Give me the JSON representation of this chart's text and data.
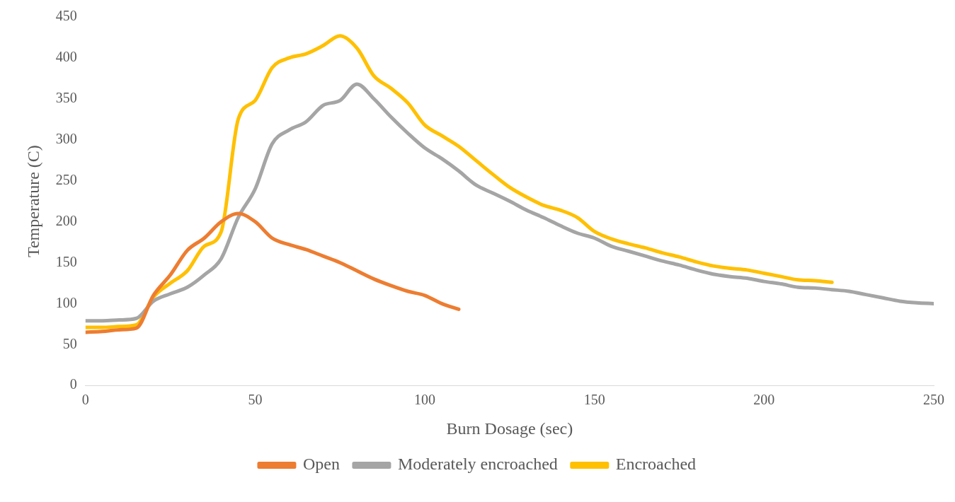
{
  "chart_data": {
    "type": "line",
    "xlabel": "Burn Dosage (sec)",
    "ylabel": "Temperature (C)",
    "xlim": [
      0,
      250
    ],
    "xticks": [
      0,
      50,
      100,
      150,
      200,
      250
    ],
    "ylim": [
      0,
      450
    ],
    "yticks": [
      0,
      50,
      100,
      150,
      200,
      250,
      300,
      350,
      400,
      450
    ],
    "grid": false,
    "legend": "bottom",
    "marker": "none",
    "line_style": "solid",
    "series": [
      {
        "name": "Open",
        "color": "#ed7d31",
        "x": [
          0,
          5,
          10,
          15,
          20,
          25,
          30,
          35,
          40,
          45,
          50,
          55,
          60,
          65,
          70,
          75,
          80,
          85,
          90,
          95,
          100,
          105,
          110
        ],
        "values": [
          65,
          66,
          68,
          70,
          110,
          135,
          165,
          180,
          200,
          210,
          200,
          180,
          172,
          166,
          158,
          150,
          140,
          130,
          122,
          115,
          110,
          100,
          93
        ]
      },
      {
        "name": "Moderately encroached",
        "color": "#a5a5a5",
        "x": [
          0,
          5,
          10,
          15,
          20,
          25,
          30,
          35,
          40,
          45,
          50,
          55,
          60,
          65,
          70,
          75,
          80,
          85,
          90,
          95,
          100,
          105,
          110,
          115,
          120,
          125,
          130,
          135,
          140,
          145,
          150,
          155,
          160,
          165,
          170,
          175,
          180,
          185,
          190,
          195,
          200,
          205,
          210,
          215,
          220,
          225,
          230,
          235,
          240,
          245,
          250
        ],
        "values": [
          79,
          79,
          80,
          82,
          103,
          112,
          120,
          135,
          155,
          205,
          240,
          295,
          312,
          322,
          342,
          348,
          368,
          350,
          328,
          308,
          290,
          277,
          262,
          245,
          235,
          225,
          214,
          205,
          195,
          186,
          180,
          170,
          164,
          158,
          152,
          147,
          141,
          136,
          133,
          131,
          127,
          124,
          120,
          119,
          117,
          115,
          111,
          107,
          103,
          101,
          100
        ]
      },
      {
        "name": "Encroached",
        "color": "#ffc000",
        "x": [
          0,
          5,
          10,
          15,
          20,
          25,
          30,
          35,
          40,
          45,
          50,
          55,
          60,
          65,
          70,
          75,
          80,
          85,
          90,
          95,
          100,
          105,
          110,
          115,
          120,
          125,
          130,
          135,
          140,
          145,
          150,
          155,
          160,
          165,
          170,
          175,
          180,
          185,
          190,
          195,
          200,
          205,
          210,
          215,
          220
        ],
        "values": [
          71,
          71,
          72,
          74,
          108,
          125,
          140,
          170,
          188,
          325,
          348,
          388,
          400,
          405,
          415,
          427,
          412,
          378,
          363,
          345,
          318,
          305,
          292,
          275,
          258,
          242,
          230,
          220,
          214,
          205,
          188,
          179,
          173,
          168,
          162,
          157,
          151,
          146,
          143,
          141,
          137,
          133,
          129,
          128,
          126
        ]
      }
    ]
  }
}
